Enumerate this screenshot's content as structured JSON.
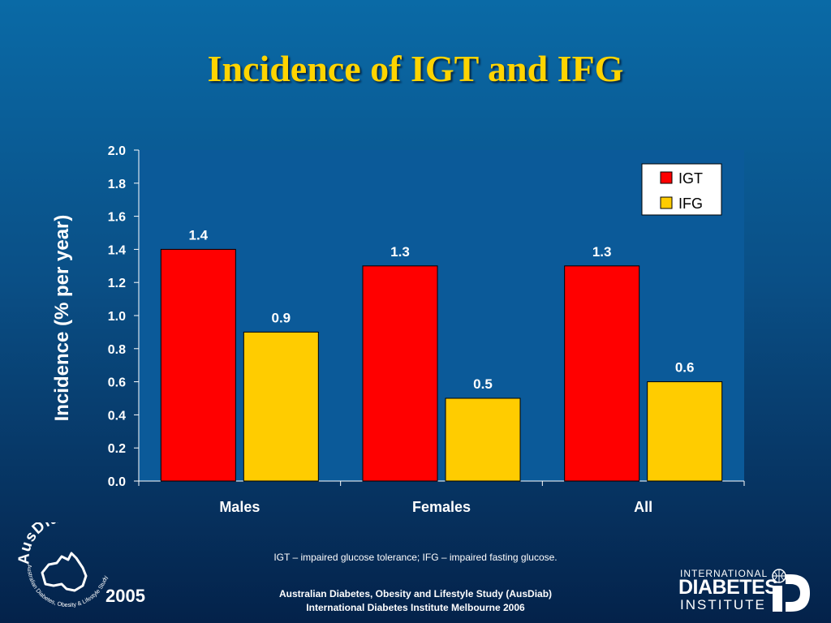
{
  "slide": {
    "title": "Incidence of IGT and IFG",
    "footnote": "IGT – impaired glucose tolerance; IFG – impaired fasting glucose.",
    "credit_line1": "Australian Diabetes, Obesity and Lifestyle Study (AusDiab)",
    "credit_line2": "International Diabetes Institute Melbourne 2006",
    "year": "2005"
  },
  "logos": {
    "ausdiab_name": "AusDiab",
    "ausdiab_subtitle": "Australian Diabetes, Obesity & Lifestyle Study",
    "institute_line1": "INTERNATIONAL",
    "institute_line2": "DIABETES",
    "institute_line3": "INSTITUTE"
  },
  "chart_data": {
    "type": "bar",
    "title": "",
    "xlabel": "",
    "ylabel": "Incidence (% per year)",
    "categories": [
      "Males",
      "Females",
      "All"
    ],
    "series": [
      {
        "name": "IGT",
        "values": [
          1.4,
          1.3,
          1.3
        ],
        "color": "#ff0000",
        "labels": [
          "1.4",
          "1.3",
          "1.3"
        ]
      },
      {
        "name": "IFG",
        "values": [
          0.9,
          0.5,
          0.6
        ],
        "color": "#ffcc00",
        "labels": [
          "0.9",
          "0.5",
          "0.6"
        ]
      }
    ],
    "ylim": [
      0,
      2.0
    ],
    "yticks": [
      "0.0",
      "0.2",
      "0.4",
      "0.6",
      "0.8",
      "1.0",
      "1.2",
      "1.4",
      "1.6",
      "1.8",
      "2.0"
    ],
    "grid": false,
    "legend_position": "top-right",
    "plot_background": "#0b5a99"
  }
}
